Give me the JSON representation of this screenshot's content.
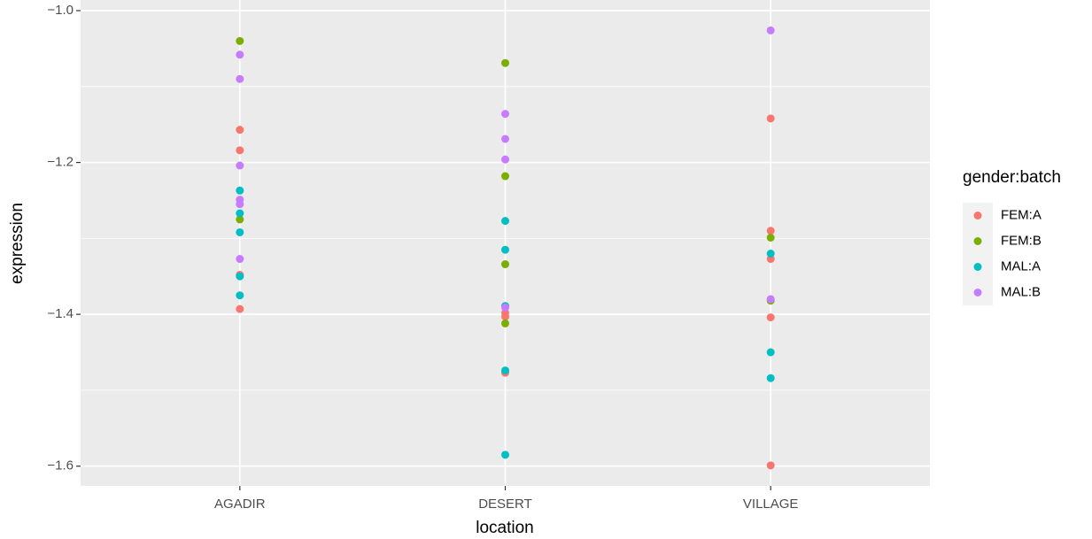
{
  "chart_data": {
    "type": "scatter",
    "x_label": "location",
    "y_label": "expression",
    "categories": [
      "AGADIR",
      "DESERT",
      "VILLAGE"
    ],
    "ylim": [
      -1.626,
      -0.986
    ],
    "yticks": [
      {
        "value": -1.0,
        "label": "−1.0"
      },
      {
        "value": -1.2,
        "label": "−1.2"
      },
      {
        "value": -1.4,
        "label": "−1.4"
      },
      {
        "value": -1.6,
        "label": "−1.6"
      }
    ],
    "minor_yticks": [
      -1.1,
      -1.3,
      -1.5
    ],
    "grid": true,
    "legend_title": "gender:batch",
    "legend_position": "right",
    "series": [
      {
        "name": "FEM:A",
        "color": "#F8766D",
        "x": [
          "AGADIR",
          "AGADIR",
          "AGADIR",
          "AGADIR",
          "DESERT",
          "DESERT",
          "DESERT",
          "VILLAGE",
          "VILLAGE",
          "VILLAGE",
          "VILLAGE",
          "VILLAGE"
        ],
        "values": [
          -1.157,
          -1.184,
          -1.348,
          -1.393,
          -1.398,
          -1.403,
          -1.477,
          -1.142,
          -1.29,
          -1.327,
          -1.404,
          -1.599
        ]
      },
      {
        "name": "FEM:B",
        "color": "#7CAE00",
        "x": [
          "AGADIR",
          "AGADIR",
          "DESERT",
          "DESERT",
          "DESERT",
          "DESERT",
          "VILLAGE",
          "VILLAGE"
        ],
        "values": [
          -1.04,
          -1.275,
          -1.069,
          -1.218,
          -1.334,
          -1.412,
          -1.299,
          -1.382
        ]
      },
      {
        "name": "MAL:A",
        "color": "#00BFC4",
        "x": [
          "AGADIR",
          "AGADIR",
          "AGADIR",
          "AGADIR",
          "AGADIR",
          "DESERT",
          "DESERT",
          "DESERT",
          "DESERT",
          "DESERT",
          "VILLAGE",
          "VILLAGE",
          "VILLAGE"
        ],
        "values": [
          -1.237,
          -1.267,
          -1.292,
          -1.35,
          -1.375,
          -1.277,
          -1.315,
          -1.389,
          -1.474,
          -1.585,
          -1.32,
          -1.45,
          -1.484
        ]
      },
      {
        "name": "MAL:B",
        "color": "#C77CFF",
        "x": [
          "AGADIR",
          "AGADIR",
          "AGADIR",
          "AGADIR",
          "AGADIR",
          "AGADIR",
          "DESERT",
          "DESERT",
          "DESERT",
          "DESERT",
          "VILLAGE",
          "VILLAGE"
        ],
        "values": [
          -1.058,
          -1.09,
          -1.204,
          -1.249,
          -1.255,
          -1.327,
          -1.136,
          -1.169,
          -1.196,
          -1.391,
          -1.026,
          -1.38
        ]
      }
    ]
  }
}
